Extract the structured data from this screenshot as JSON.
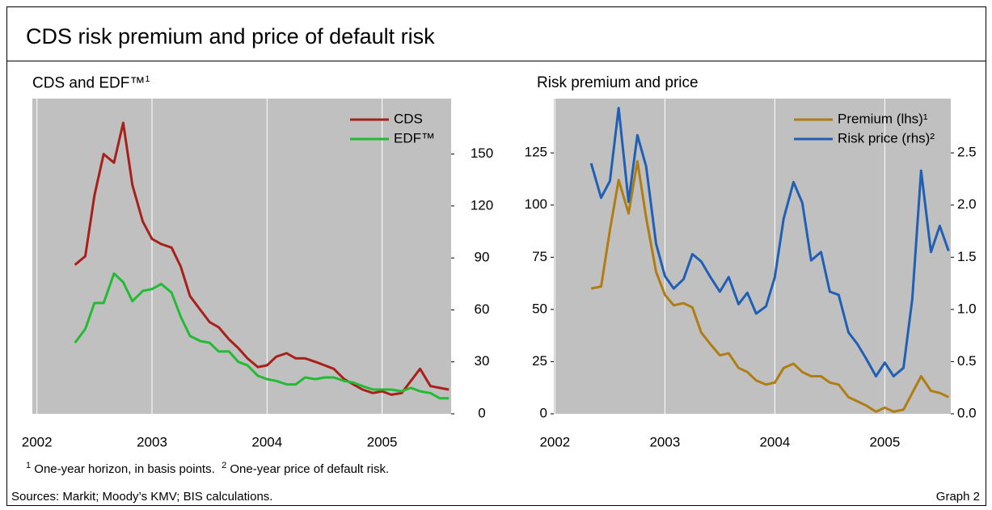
{
  "title": "CDS risk premium and price of default risk",
  "footnotes": [
    {
      "marker": "1",
      "text": "One-year horizon, in basis points."
    },
    {
      "marker": "2",
      "text": "One-year price of default risk."
    }
  ],
  "sources": "Sources: Markit; Moody’s KMV; BIS calculations.",
  "graph_label": "Graph 2",
  "chart_data": [
    {
      "type": "line",
      "title": "CDS and EDF™",
      "title_note": "1",
      "x": [
        2002.33,
        2002.42,
        2002.5,
        2002.58,
        2002.67,
        2002.75,
        2002.83,
        2002.92,
        2003.0,
        2003.08,
        2003.17,
        2003.25,
        2003.33,
        2003.42,
        2003.5,
        2003.58,
        2003.67,
        2003.75,
        2003.83,
        2003.92,
        2004.0,
        2004.08,
        2004.17,
        2004.25,
        2004.33,
        2004.42,
        2004.5,
        2004.58,
        2004.67,
        2004.75,
        2004.83,
        2004.92,
        2005.0,
        2005.08,
        2005.17,
        2005.25,
        2005.33,
        2005.42,
        2005.5,
        2005.58
      ],
      "series": [
        {
          "name": "CDS",
          "color": "#a8201a",
          "values": [
            86,
            91,
            126,
            150,
            145,
            168,
            132,
            111,
            101,
            98,
            96,
            85,
            68,
            60,
            53,
            50,
            43,
            38,
            32,
            27,
            28,
            33,
            35,
            32,
            32,
            30,
            28,
            26,
            20,
            17,
            14,
            12,
            13,
            11,
            12,
            19,
            26,
            16,
            15,
            14
          ]
        },
        {
          "name": "EDF™",
          "color": "#22bb33",
          "values": [
            41,
            49,
            64,
            64,
            81,
            76,
            65,
            71,
            72,
            75,
            70,
            56,
            45,
            42,
            41,
            36,
            36,
            30,
            28,
            22,
            20,
            19,
            17,
            17,
            21,
            20,
            21,
            21,
            19,
            18,
            16,
            14,
            14,
            14,
            13,
            15,
            13,
            12,
            9,
            9
          ]
        }
      ],
      "xlim": [
        2001.96,
        2005.6
      ],
      "xticks": [
        2002,
        2003,
        2004,
        2005
      ],
      "ylim": [
        0,
        182
      ],
      "yticks": [
        0,
        30,
        60,
        90,
        120,
        150
      ],
      "yaxis_side": "right",
      "grid": "x",
      "legend": "upper right",
      "background": "#c0c0c0"
    },
    {
      "type": "line",
      "title": "Risk premium and price",
      "x": [
        2002.33,
        2002.42,
        2002.5,
        2002.58,
        2002.67,
        2002.75,
        2002.83,
        2002.92,
        2003.0,
        2003.08,
        2003.17,
        2003.25,
        2003.33,
        2003.42,
        2003.5,
        2003.58,
        2003.67,
        2003.75,
        2003.83,
        2003.92,
        2004.0,
        2004.08,
        2004.17,
        2004.25,
        2004.33,
        2004.42,
        2004.5,
        2004.58,
        2004.67,
        2004.75,
        2004.83,
        2004.92,
        2005.0,
        2005.08,
        2005.17,
        2005.25,
        2005.33,
        2005.42,
        2005.5,
        2005.58
      ],
      "series": [
        {
          "name": "Premium (lhs)¹",
          "color": "#b07d12",
          "values": [
            60,
            61,
            88,
            112,
            96,
            121,
            94,
            68,
            57,
            52,
            53,
            51,
            39,
            33,
            28,
            29,
            22,
            20,
            16,
            14,
            15,
            22,
            24,
            20,
            18,
            18,
            15,
            14,
            8,
            6,
            4,
            1,
            3,
            1,
            2,
            10,
            18,
            11,
            10,
            8
          ]
        },
        {
          "name": "Risk price (rhs)²",
          "color": "#1f5fb4",
          "axis": "y2",
          "values": [
            2.4,
            2.07,
            2.23,
            2.93,
            2.03,
            2.67,
            2.37,
            1.63,
            1.32,
            1.2,
            1.29,
            1.53,
            1.46,
            1.3,
            1.17,
            1.31,
            1.05,
            1.16,
            0.96,
            1.03,
            1.31,
            1.87,
            2.22,
            2.02,
            1.47,
            1.55,
            1.17,
            1.14,
            0.78,
            0.67,
            0.53,
            0.36,
            0.49,
            0.36,
            0.44,
            1.1,
            2.33,
            1.55,
            1.8,
            1.56
          ]
        }
      ],
      "xlim": [
        2001.99,
        2005.6
      ],
      "xticks": [
        2002,
        2003,
        2004,
        2005
      ],
      "ylim": [
        0,
        151
      ],
      "yticks": [
        0,
        25,
        50,
        75,
        100,
        125
      ],
      "yaxis_side": "left",
      "y2lim": [
        0,
        3.02
      ],
      "y2ticks": [
        {
          "value": 0,
          "label": "0.0"
        },
        0.5,
        {
          "value": 1,
          "label": "1.0"
        },
        1.5,
        {
          "value": 2,
          "label": "2.0"
        },
        2.5
      ],
      "grid": "x",
      "legend": "upper right",
      "background": "#c0c0c0"
    }
  ]
}
